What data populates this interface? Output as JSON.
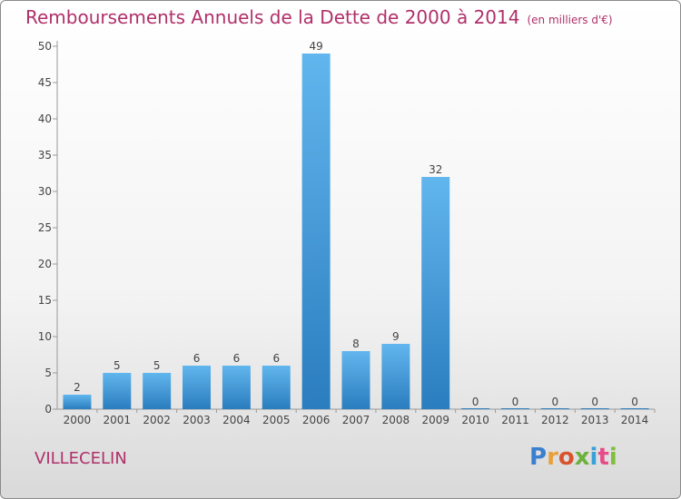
{
  "header": {
    "title": "Remboursements Annuels de la Dette de 2000 à 2014",
    "unit": "(en milliers d'€)"
  },
  "footer": {
    "location": "VILLECELIN",
    "logo_text": "Proxiti"
  },
  "colors": {
    "title": "#b0306a",
    "bar_top": "#62b6ee",
    "bar_bottom": "#2a7dbe"
  },
  "chart_data": {
    "type": "bar",
    "title": "Remboursements Annuels de la Dette de 2000 à 2014",
    "subtitle": "(en milliers d'€)",
    "xlabel": "",
    "ylabel": "",
    "categories": [
      "2000",
      "2001",
      "2002",
      "2003",
      "2004",
      "2005",
      "2006",
      "2007",
      "2008",
      "2009",
      "2010",
      "2011",
      "2012",
      "2013",
      "2014"
    ],
    "values": [
      2,
      5,
      5,
      6,
      6,
      6,
      49,
      8,
      9,
      32,
      0,
      0,
      0,
      0,
      0
    ],
    "value_labels": [
      "2",
      "5",
      "5",
      "6",
      "6",
      "6",
      "49",
      "8",
      "9",
      "32",
      "0",
      "0",
      "0",
      "0",
      "0"
    ],
    "ylim": [
      0,
      50
    ],
    "yticks": [
      0,
      5,
      10,
      15,
      20,
      25,
      30,
      35,
      40,
      45,
      50
    ],
    "ytick_labels": [
      "0",
      "5",
      "10",
      "15",
      "20",
      "25",
      "30",
      "35",
      "40",
      "45",
      "50"
    ],
    "grid": false,
    "legend": "none"
  }
}
